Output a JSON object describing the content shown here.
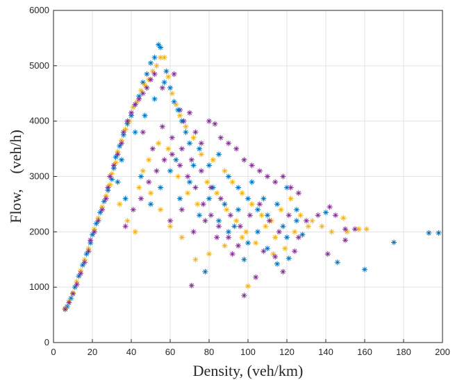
{
  "chart_data": {
    "type": "scatter",
    "title": "",
    "xlabel": "Density, (veh/km)",
    "ylabel": "Flow,    (veh/h)",
    "xlim": [
      0,
      200
    ],
    "ylim": [
      0,
      6000
    ],
    "xticks": [
      "0",
      "20",
      "40",
      "60",
      "80",
      "100",
      "120",
      "140",
      "160",
      "180",
      "200"
    ],
    "yticks": [
      "0",
      "1000",
      "2000",
      "3000",
      "4000",
      "5000",
      "6000"
    ],
    "grid": true,
    "legend": "none",
    "marker": "*",
    "colors": [
      "#0072BD",
      "#EDB120",
      "#7E2F8E"
    ],
    "series": [
      {
        "color": "#0072BD",
        "points": [
          [
            7,
            650
          ],
          [
            9,
            800
          ],
          [
            11,
            1000
          ],
          [
            13,
            1200
          ],
          [
            15,
            1400
          ],
          [
            17,
            1600
          ],
          [
            19,
            1800
          ],
          [
            20,
            1950
          ],
          [
            22,
            2150
          ],
          [
            24,
            2350
          ],
          [
            26,
            2550
          ],
          [
            28,
            2750
          ],
          [
            30,
            2950
          ],
          [
            31,
            3150
          ],
          [
            32,
            3350
          ],
          [
            34,
            3550
          ],
          [
            36,
            3750
          ],
          [
            38,
            3950
          ],
          [
            40,
            4100
          ],
          [
            42,
            4300
          ],
          [
            44,
            4450
          ],
          [
            46,
            4700
          ],
          [
            48,
            4850
          ],
          [
            50,
            5050
          ],
          [
            52,
            5150
          ],
          [
            54,
            5380
          ],
          [
            55,
            5330
          ],
          [
            58,
            4900
          ],
          [
            60,
            4600
          ],
          [
            62,
            4350
          ],
          [
            64,
            4200
          ],
          [
            66,
            4000
          ],
          [
            70,
            3600
          ],
          [
            75,
            3500
          ],
          [
            80,
            3200
          ],
          [
            85,
            3400
          ],
          [
            90,
            3000
          ],
          [
            95,
            2800
          ],
          [
            100,
            2600
          ],
          [
            105,
            2400
          ],
          [
            110,
            2300
          ],
          [
            115,
            2500
          ],
          [
            120,
            2800
          ],
          [
            125,
            2400
          ],
          [
            78,
            1280
          ],
          [
            98,
            1500
          ],
          [
            115,
            1420
          ],
          [
            121,
            1520
          ],
          [
            146,
            1450
          ],
          [
            160,
            1320
          ],
          [
            175,
            1810
          ],
          [
            193,
            1980
          ],
          [
            198,
            1980
          ],
          [
            45,
            3000
          ],
          [
            50,
            2500
          ],
          [
            55,
            2800
          ],
          [
            60,
            3100
          ],
          [
            65,
            2600
          ],
          [
            70,
            2900
          ],
          [
            75,
            2300
          ],
          [
            80,
            2600
          ],
          [
            85,
            2200
          ],
          [
            90,
            2000
          ],
          [
            95,
            2400
          ],
          [
            100,
            1800
          ],
          [
            105,
            2000
          ],
          [
            110,
            1700
          ],
          [
            120,
            1900
          ],
          [
            125,
            2200
          ],
          [
            35,
            3300
          ],
          [
            33,
            2900
          ],
          [
            37,
            2600
          ],
          [
            42,
            3800
          ],
          [
            47,
            4100
          ],
          [
            52,
            4400
          ],
          [
            57,
            4700
          ],
          [
            63,
            3300
          ],
          [
            68,
            3800
          ],
          [
            72,
            3200
          ],
          [
            82,
            2800
          ],
          [
            88,
            2500
          ],
          [
            93,
            2100
          ],
          [
            102,
            2900
          ],
          [
            108,
            2600
          ],
          [
            118,
            2100
          ],
          [
            128,
            1950
          ],
          [
            140,
            2350
          ]
        ]
      },
      {
        "color": "#EDB120",
        "points": [
          [
            6,
            620
          ],
          [
            8,
            750
          ],
          [
            10,
            900
          ],
          [
            12,
            1100
          ],
          [
            14,
            1300
          ],
          [
            16,
            1500
          ],
          [
            18,
            1700
          ],
          [
            21,
            2050
          ],
          [
            23,
            2250
          ],
          [
            25,
            2450
          ],
          [
            27,
            2650
          ],
          [
            29,
            2850
          ],
          [
            30,
            3050
          ],
          [
            32,
            3250
          ],
          [
            33,
            3450
          ],
          [
            35,
            3650
          ],
          [
            37,
            3850
          ],
          [
            39,
            4000
          ],
          [
            41,
            4250
          ],
          [
            43,
            4350
          ],
          [
            45,
            4550
          ],
          [
            47,
            4650
          ],
          [
            49,
            4750
          ],
          [
            51,
            4900
          ],
          [
            53,
            5000
          ],
          [
            55,
            5150
          ],
          [
            57,
            5150
          ],
          [
            59,
            4800
          ],
          [
            61,
            4500
          ],
          [
            63,
            4300
          ],
          [
            65,
            4100
          ],
          [
            68,
            3900
          ],
          [
            72,
            3700
          ],
          [
            76,
            3400
          ],
          [
            82,
            3300
          ],
          [
            88,
            3100
          ],
          [
            92,
            2900
          ],
          [
            97,
            2700
          ],
          [
            102,
            2500
          ],
          [
            107,
            2300
          ],
          [
            112,
            2200
          ],
          [
            117,
            2400
          ],
          [
            122,
            2600
          ],
          [
            127,
            2300
          ],
          [
            133,
            2200
          ],
          [
            138,
            2100
          ],
          [
            143,
            2000
          ],
          [
            149,
            2250
          ],
          [
            151,
            2000
          ],
          [
            157,
            2050
          ],
          [
            161,
            2050
          ],
          [
            100,
            1020
          ],
          [
            113,
            1600
          ],
          [
            119,
            1700
          ],
          [
            97,
            1900
          ],
          [
            88,
            1750
          ],
          [
            80,
            1600
          ],
          [
            73,
            1500
          ],
          [
            66,
            1900
          ],
          [
            60,
            2100
          ],
          [
            55,
            2400
          ],
          [
            50,
            2700
          ],
          [
            46,
            3100
          ],
          [
            44,
            2800
          ],
          [
            49,
            3300
          ],
          [
            54,
            3600
          ],
          [
            59,
            3500
          ],
          [
            64,
            3000
          ],
          [
            69,
            2700
          ],
          [
            74,
            2500
          ],
          [
            79,
            2900
          ],
          [
            84,
            2700
          ],
          [
            89,
            2400
          ],
          [
            94,
            2200
          ],
          [
            99,
            2000
          ],
          [
            104,
            1800
          ],
          [
            109,
            2100
          ],
          [
            114,
            1900
          ],
          [
            124,
            2000
          ],
          [
            131,
            2100
          ],
          [
            34,
            2500
          ],
          [
            38,
            2200
          ],
          [
            42,
            2000
          ]
        ]
      },
      {
        "color": "#7E2F8E",
        "points": [
          [
            6,
            600
          ],
          [
            8,
            720
          ],
          [
            10,
            880
          ],
          [
            12,
            1050
          ],
          [
            14,
            1250
          ],
          [
            16,
            1450
          ],
          [
            18,
            1650
          ],
          [
            19,
            1850
          ],
          [
            21,
            2000
          ],
          [
            23,
            2200
          ],
          [
            25,
            2400
          ],
          [
            27,
            2600
          ],
          [
            28,
            2800
          ],
          [
            29,
            3000
          ],
          [
            31,
            3200
          ],
          [
            33,
            3400
          ],
          [
            35,
            3600
          ],
          [
            36,
            3800
          ],
          [
            38,
            4000
          ],
          [
            40,
            4150
          ],
          [
            42,
            4300
          ],
          [
            44,
            4400
          ],
          [
            46,
            4500
          ],
          [
            48,
            4600
          ],
          [
            50,
            4750
          ],
          [
            52,
            4850
          ],
          [
            56,
            4600
          ],
          [
            62,
            4850
          ],
          [
            65,
            4200
          ],
          [
            67,
            4000
          ],
          [
            70,
            4150
          ],
          [
            73,
            3800
          ],
          [
            76,
            3600
          ],
          [
            80,
            4000
          ],
          [
            83,
            3950
          ],
          [
            86,
            3700
          ],
          [
            90,
            3600
          ],
          [
            94,
            3500
          ],
          [
            98,
            3300
          ],
          [
            102,
            3200
          ],
          [
            106,
            3100
          ],
          [
            110,
            3000
          ],
          [
            114,
            2900
          ],
          [
            118,
            3000
          ],
          [
            122,
            2800
          ],
          [
            126,
            2700
          ],
          [
            142,
            2450
          ],
          [
            145,
            2300
          ],
          [
            150,
            2050
          ],
          [
            71,
            1030
          ],
          [
            98,
            850
          ],
          [
            104,
            1180
          ],
          [
            118,
            1280
          ],
          [
            124,
            1650
          ],
          [
            130,
            2200
          ],
          [
            136,
            2300
          ],
          [
            141,
            1600
          ],
          [
            150,
            1850
          ],
          [
            155,
            2050
          ],
          [
            95,
            1750
          ],
          [
            90,
            1900
          ],
          [
            85,
            2100
          ],
          [
            81,
            2300
          ],
          [
            77,
            2500
          ],
          [
            73,
            2800
          ],
          [
            69,
            3000
          ],
          [
            65,
            3200
          ],
          [
            61,
            3400
          ],
          [
            57,
            3300
          ],
          [
            53,
            3100
          ],
          [
            49,
            2900
          ],
          [
            45,
            2600
          ],
          [
            41,
            2400
          ],
          [
            37,
            2100
          ],
          [
            46,
            3800
          ],
          [
            51,
            3500
          ],
          [
            56,
            3900
          ],
          [
            61,
            3700
          ],
          [
            66,
            3500
          ],
          [
            71,
            3300
          ],
          [
            76,
            3100
          ],
          [
            81,
            2800
          ],
          [
            86,
            2600
          ],
          [
            91,
            2300
          ],
          [
            96,
            2100
          ],
          [
            101,
            2300
          ],
          [
            106,
            2500
          ],
          [
            111,
            2200
          ],
          [
            116,
            2000
          ],
          [
            121,
            2300
          ],
          [
            126,
            1900
          ],
          [
            60,
            2200
          ],
          [
            66,
            2400
          ],
          [
            72,
            2000
          ],
          [
            78,
            2200
          ],
          [
            84,
            1900
          ],
          [
            92,
            1600
          ],
          [
            108,
            1650
          ],
          [
            114,
            1550
          ]
        ]
      }
    ]
  }
}
